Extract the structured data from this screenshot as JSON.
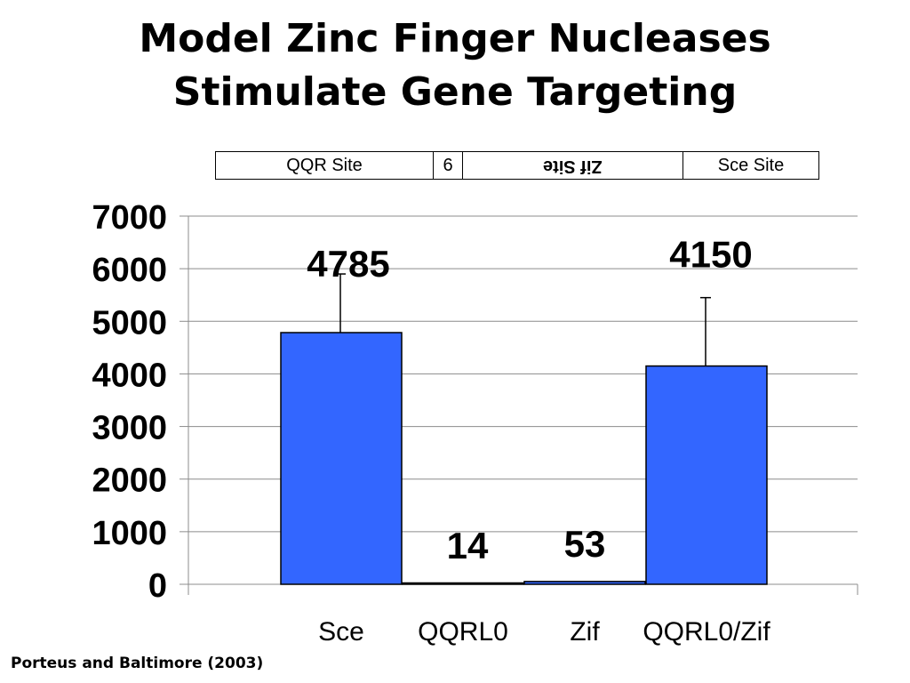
{
  "slide": {
    "title_line1": "Model Zinc Finger Nucleases",
    "title_line2": "Stimulate Gene Targeting",
    "citation": "Porteus and Baltimore (2003)"
  },
  "site_diagram": {
    "qqr_site": "QQR Site",
    "spacer": "6",
    "zif_site": "Zif Site",
    "sce_site": "Sce Site"
  },
  "chart_data": {
    "type": "bar",
    "categories": [
      "Sce",
      "QQRL0",
      "Zif",
      "QQRL0/Zif"
    ],
    "values": [
      4785,
      14,
      53,
      4150
    ],
    "data_labels": [
      "4785",
      "14",
      "53",
      "4150"
    ],
    "error_bars_upper": [
      5900,
      null,
      null,
      5450
    ],
    "ylim": [
      0,
      7000
    ],
    "yticks": [
      0,
      1000,
      2000,
      3000,
      4000,
      5000,
      6000,
      7000
    ],
    "grid": true,
    "bar_color": "#3366FF",
    "title": "",
    "xlabel": "",
    "ylabel": ""
  }
}
